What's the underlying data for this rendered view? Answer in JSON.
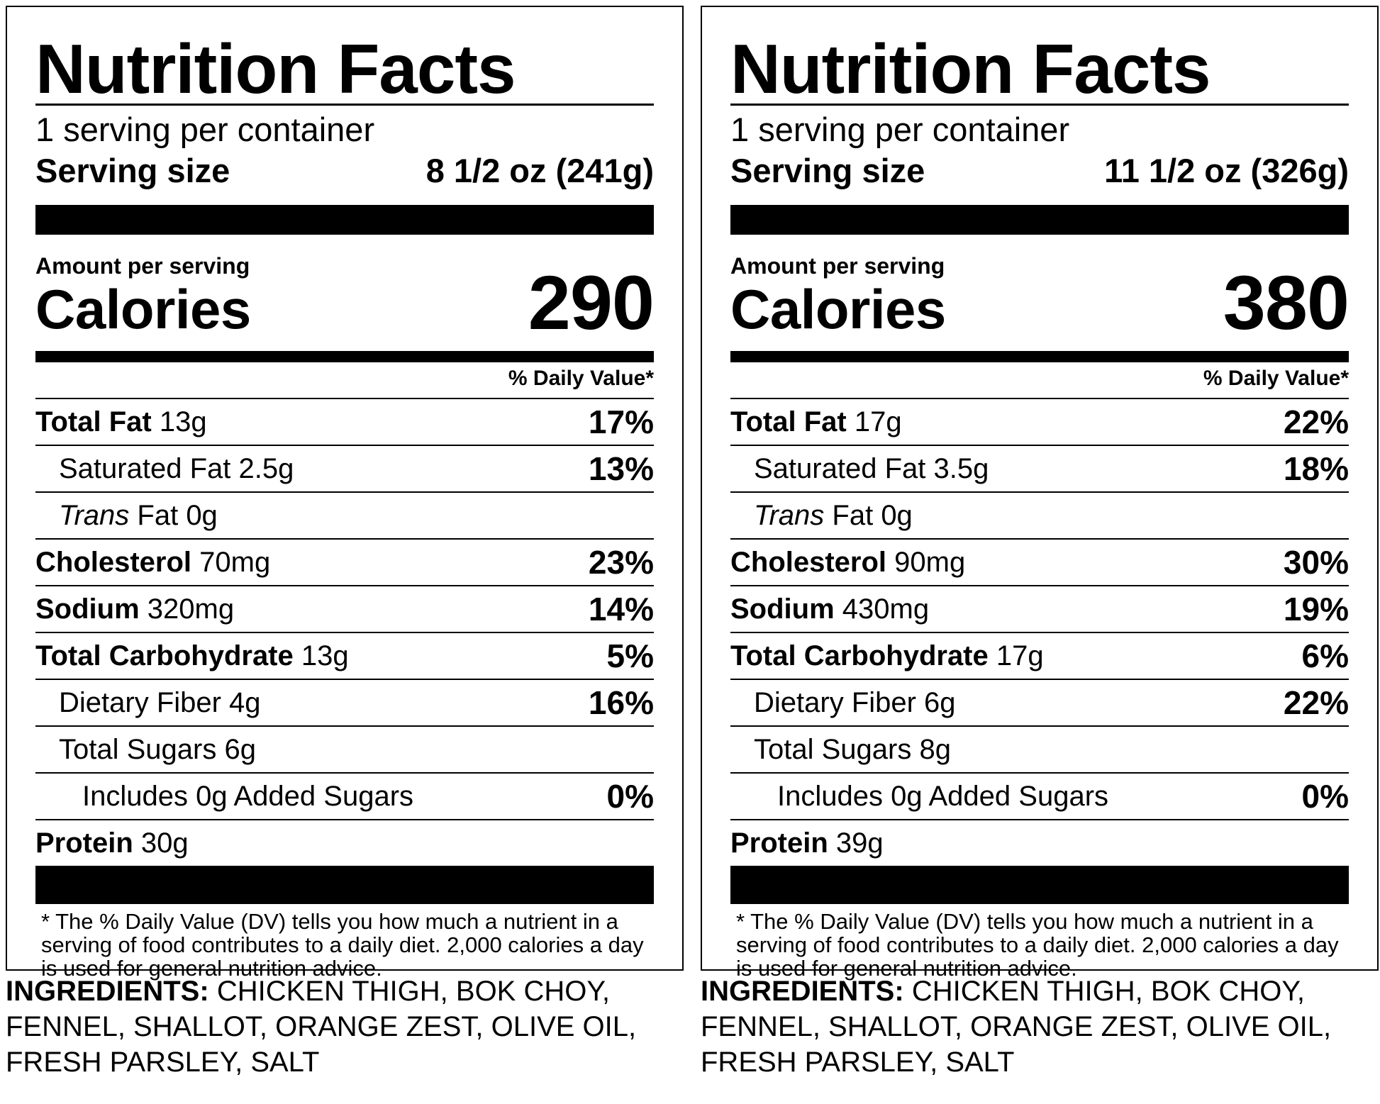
{
  "labels": [
    {
      "title": "Nutrition Facts",
      "servings_per_container": "1 serving per container",
      "serving_size_label": "Serving size",
      "serving_size_value": "8 1/2 oz (241g)",
      "amount_per_serving": "Amount per serving",
      "calories_label": "Calories",
      "calories_value": "290",
      "dv_header": "% Daily Value*",
      "total_fat": {
        "label": "Total Fat",
        "amount": "13g",
        "dv": "17%"
      },
      "saturated_fat": {
        "label": "Saturated Fat 2.5g",
        "dv": "13%"
      },
      "trans_fat": {
        "label_italic": "Trans",
        "label_rest": "Fat 0g"
      },
      "cholesterol": {
        "label": "Cholesterol",
        "amount": "70mg",
        "dv": "23%"
      },
      "sodium": {
        "label": "Sodium",
        "amount": "320mg",
        "dv": "14%"
      },
      "total_carbohydrate": {
        "label": "Total Carbohydrate",
        "amount": "13g",
        "dv": "5%"
      },
      "dietary_fiber": {
        "label": "Dietary Fiber 4g",
        "dv": "16%"
      },
      "total_sugars": {
        "label": "Total Sugars 6g"
      },
      "added_sugars": {
        "label": "Includes 0g Added Sugars",
        "dv": "0%"
      },
      "protein": {
        "label": "Protein",
        "amount": "30g"
      },
      "footnote": "* The % Daily Value (DV) tells you how much a nutrient in a serving of food contributes to a daily diet. 2,000 calories a day is used for general nutrition advice.",
      "ingredients_label": "INGREDIENTS:",
      "ingredients_text": "CHICKEN THIGH, BOK CHOY, FENNEL, SHALLOT, ORANGE ZEST, OLIVE OIL, FRESH PARSLEY, SALT"
    },
    {
      "title": "Nutrition Facts",
      "servings_per_container": "1 serving per container",
      "serving_size_label": "Serving size",
      "serving_size_value": "11 1/2 oz (326g)",
      "amount_per_serving": "Amount per serving",
      "calories_label": "Calories",
      "calories_value": "380",
      "dv_header": "% Daily Value*",
      "total_fat": {
        "label": "Total Fat",
        "amount": "17g",
        "dv": "22%"
      },
      "saturated_fat": {
        "label": "Saturated Fat 3.5g",
        "dv": "18%"
      },
      "trans_fat": {
        "label_italic": "Trans",
        "label_rest": "Fat 0g"
      },
      "cholesterol": {
        "label": "Cholesterol",
        "amount": "90mg",
        "dv": "30%"
      },
      "sodium": {
        "label": "Sodium",
        "amount": "430mg",
        "dv": "19%"
      },
      "total_carbohydrate": {
        "label": "Total Carbohydrate",
        "amount": "17g",
        "dv": "6%"
      },
      "dietary_fiber": {
        "label": "Dietary Fiber 6g",
        "dv": "22%"
      },
      "total_sugars": {
        "label": "Total Sugars 8g"
      },
      "added_sugars": {
        "label": "Includes 0g Added Sugars",
        "dv": "0%"
      },
      "protein": {
        "label": "Protein",
        "amount": "39g"
      },
      "footnote": "* The % Daily Value (DV) tells you how much a nutrient in a serving of food contributes to a daily diet. 2,000 calories a day is used for general nutrition advice.",
      "ingredients_label": "INGREDIENTS:",
      "ingredients_text": "CHICKEN THIGH, BOK CHOY, FENNEL, SHALLOT, ORANGE ZEST, OLIVE OIL, FRESH PARSLEY, SALT"
    }
  ]
}
